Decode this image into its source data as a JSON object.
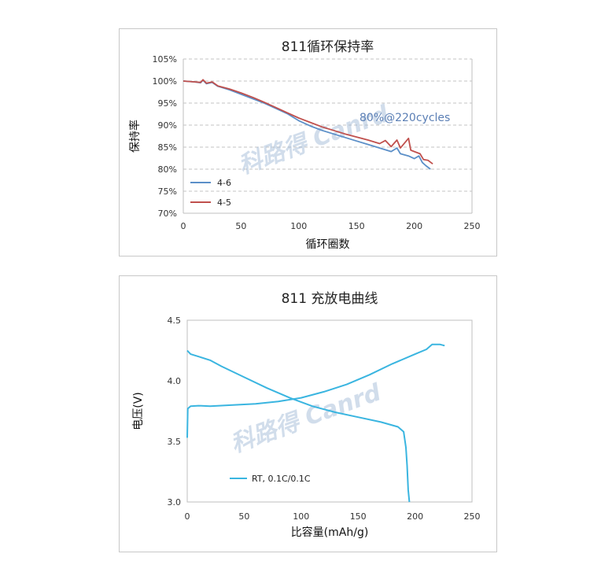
{
  "chart_data": [
    {
      "type": "line",
      "title": "811循环保持率",
      "xlabel": "循环圈数",
      "ylabel": "保持率",
      "xlim": [
        0,
        250
      ],
      "ylim": [
        70,
        105
      ],
      "x_ticks": [
        "0",
        "50",
        "100",
        "150",
        "200",
        "250"
      ],
      "y_ticks": [
        "70%",
        "75%",
        "80%",
        "85%",
        "90%",
        "95%",
        "100%",
        "105%"
      ],
      "grid": "horizontal-dashed",
      "legend_position": "bottom-left",
      "annotation": "80%@220cycles",
      "watermark": "科路得 Canrd",
      "series": [
        {
          "name": "4-6",
          "color": "#5b8fc8",
          "points": [
            [
              0,
              100
            ],
            [
              10,
              99.8
            ],
            [
              15,
              99.6
            ],
            [
              17,
              100.2
            ],
            [
              20,
              99.4
            ],
            [
              25,
              99.7
            ],
            [
              30,
              98.8
            ],
            [
              40,
              98.0
            ],
            [
              50,
              97.0
            ],
            [
              60,
              96.0
            ],
            [
              70,
              95.0
            ],
            [
              80,
              93.8
            ],
            [
              90,
              92.6
            ],
            [
              100,
              91.0
            ],
            [
              110,
              89.8
            ],
            [
              120,
              88.8
            ],
            [
              130,
              88.0
            ],
            [
              140,
              87.2
            ],
            [
              150,
              86.4
            ],
            [
              160,
              85.6
            ],
            [
              170,
              84.8
            ],
            [
              180,
              84.0
            ],
            [
              185,
              84.8
            ],
            [
              188,
              83.5
            ],
            [
              195,
              83.0
            ],
            [
              200,
              82.4
            ],
            [
              204,
              83.0
            ],
            [
              207,
              81.5
            ],
            [
              210,
              80.8
            ],
            [
              214,
              80.0
            ]
          ]
        },
        {
          "name": "4-5",
          "color": "#c0504d",
          "points": [
            [
              0,
              100
            ],
            [
              10,
              99.8
            ],
            [
              15,
              99.7
            ],
            [
              17,
              100.3
            ],
            [
              20,
              99.5
            ],
            [
              25,
              99.8
            ],
            [
              30,
              98.9
            ],
            [
              40,
              98.2
            ],
            [
              50,
              97.3
            ],
            [
              60,
              96.3
            ],
            [
              70,
              95.2
            ],
            [
              80,
              94.0
            ],
            [
              90,
              92.8
            ],
            [
              100,
              91.6
            ],
            [
              110,
              90.6
            ],
            [
              120,
              89.6
            ],
            [
              130,
              88.8
            ],
            [
              140,
              88.0
            ],
            [
              150,
              87.3
            ],
            [
              160,
              86.6
            ],
            [
              170,
              85.8
            ],
            [
              175,
              86.5
            ],
            [
              180,
              85.1
            ],
            [
              185,
              86.6
            ],
            [
              188,
              84.8
            ],
            [
              195,
              87.0
            ],
            [
              197,
              84.3
            ],
            [
              200,
              84.0
            ],
            [
              205,
              83.5
            ],
            [
              208,
              82.2
            ],
            [
              212,
              82.0
            ],
            [
              216,
              81.2
            ]
          ]
        }
      ]
    },
    {
      "type": "line",
      "title": "811 充放电曲线",
      "xlabel": "比容量(mAh/g)",
      "ylabel": "电压(V)",
      "xlim": [
        0,
        250
      ],
      "ylim": [
        3.0,
        4.5
      ],
      "x_ticks": [
        "0",
        "50",
        "100",
        "150",
        "200",
        "250"
      ],
      "y_ticks": [
        "3.0",
        "3.5",
        "4.0",
        "4.5"
      ],
      "grid": "none",
      "legend_position": "bottom-left",
      "watermark": "科路得 Canrd",
      "series": [
        {
          "name": "RT, 0.1C/0.1C",
          "color": "#3ab5e0",
          "charge_points": [
            [
              0,
              3.53
            ],
            [
              0.5,
              3.77
            ],
            [
              3,
              3.79
            ],
            [
              10,
              3.795
            ],
            [
              20,
              3.79
            ],
            [
              40,
              3.8
            ],
            [
              60,
              3.81
            ],
            [
              80,
              3.83
            ],
            [
              100,
              3.86
            ],
            [
              120,
              3.91
            ],
            [
              140,
              3.97
            ],
            [
              160,
              4.05
            ],
            [
              180,
              4.14
            ],
            [
              200,
              4.22
            ],
            [
              210,
              4.26
            ],
            [
              215,
              4.3
            ],
            [
              222,
              4.3
            ],
            [
              226,
              4.29
            ]
          ],
          "discharge_points": [
            [
              0,
              4.25
            ],
            [
              3,
              4.22
            ],
            [
              10,
              4.2
            ],
            [
              20,
              4.17
            ],
            [
              30,
              4.12
            ],
            [
              50,
              4.03
            ],
            [
              70,
              3.94
            ],
            [
              90,
              3.86
            ],
            [
              110,
              3.79
            ],
            [
              130,
              3.74
            ],
            [
              150,
              3.7
            ],
            [
              170,
              3.66
            ],
            [
              185,
              3.62
            ],
            [
              190,
              3.58
            ],
            [
              192,
              3.45
            ],
            [
              193,
              3.3
            ],
            [
              194,
              3.1
            ],
            [
              195,
              3.0
            ]
          ]
        }
      ]
    }
  ]
}
